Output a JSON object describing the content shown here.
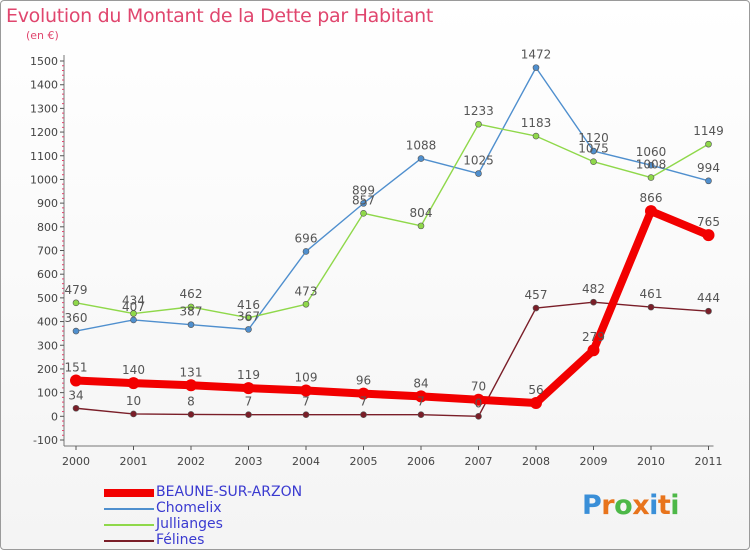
{
  "header": {
    "title": "Evolution du Montant de la Dette par Habitant",
    "subtitle": "(en €)"
  },
  "logo": {
    "text": "Proxiti",
    "colors": [
      "#3a8fd8",
      "#e8741c",
      "#4db848",
      "#e8741c",
      "#3a8fd8",
      "#e8741c",
      "#4db848"
    ]
  },
  "chart_data": {
    "type": "line",
    "title": "Evolution du Montant de la Dette par Habitant",
    "subtitle": "(en €)",
    "xlabel": "",
    "ylabel": "",
    "ylim": [
      -100,
      1500
    ],
    "yticks": [
      -100,
      0,
      100,
      200,
      300,
      400,
      500,
      600,
      700,
      800,
      900,
      1000,
      1100,
      1200,
      1300,
      1400,
      1500
    ],
    "categories": [
      "2000",
      "2001",
      "2002",
      "2003",
      "2004",
      "2005",
      "2006",
      "2007",
      "2008",
      "2009",
      "2010",
      "2011"
    ],
    "grid": false,
    "legend_position": "bottom-left",
    "series": [
      {
        "name": "Chomelix",
        "color": "#4f8fce",
        "values": [
          360,
          407,
          387,
          367,
          696,
          899,
          1088,
          1025,
          1472,
          1120,
          1060,
          994
        ],
        "labels": [
          "360",
          "407",
          "387",
          "367",
          "696",
          "899",
          "1088",
          "1025",
          "1472",
          "1120",
          "1060",
          "994"
        ]
      },
      {
        "name": "Jullianges",
        "color": "#8fd84a",
        "values": [
          479,
          434,
          462,
          416,
          473,
          857,
          804,
          1233,
          1183,
          1075,
          1008,
          1149
        ],
        "labels": [
          "479",
          "434",
          "462",
          "416",
          "473",
          "857",
          "804",
          "1233",
          "1183",
          "1075",
          "1008",
          "1149"
        ]
      },
      {
        "name": "Félines",
        "color": "#7a1e28",
        "values": [
          34,
          10,
          8,
          7,
          7,
          7,
          7,
          0,
          457,
          482,
          461,
          444
        ],
        "labels": [
          "34",
          "10",
          "8",
          "7",
          "7",
          "7",
          "7",
          "0",
          "457",
          "482",
          "461",
          "444"
        ]
      },
      {
        "name": "BEAUNE-SUR-ARZON",
        "color": "#f20000",
        "values": [
          151,
          140,
          131,
          119,
          109,
          96,
          84,
          70,
          56,
          279,
          866,
          765
        ],
        "labels": [
          "151",
          "140",
          "131",
          "119",
          "109",
          "96",
          "84",
          "70",
          "56",
          "279",
          "866",
          "765"
        ]
      }
    ],
    "legend": [
      "BEAUNE-SUR-ARZON",
      "Chomelix",
      "Jullianges",
      "Félines"
    ]
  }
}
